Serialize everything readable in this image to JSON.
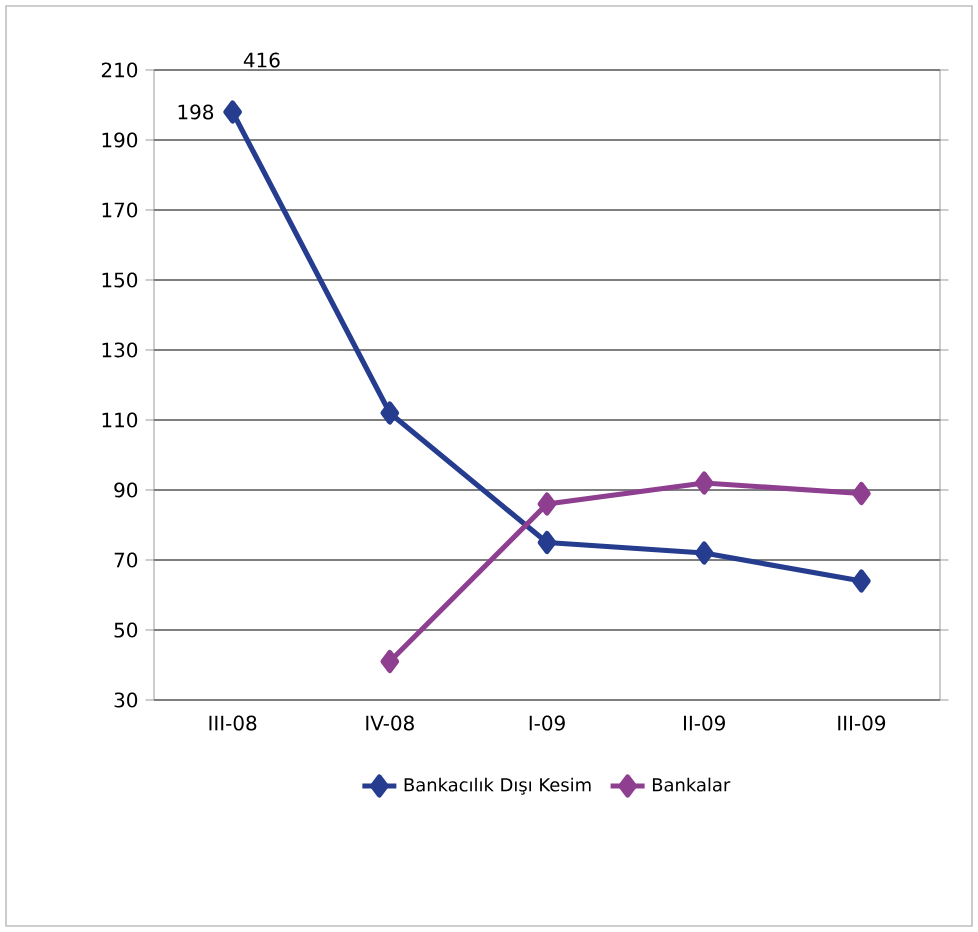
{
  "chart_data": {
    "type": "line",
    "categories": [
      "III-08",
      "IV-08",
      "I-09",
      "II-09",
      "III-09"
    ],
    "series": [
      {
        "name": "Bankacılık Dışı Kesim",
        "color": "#263d8f",
        "values": [
          198,
          112,
          75,
          72,
          64
        ],
        "value_labels": [
          "198",
          null,
          null,
          null,
          null
        ]
      },
      {
        "name": "Bankalar",
        "color": "#8e3f8f",
        "values": [
          null,
          41,
          86,
          92,
          89
        ]
      }
    ],
    "annotations": [
      "416"
    ],
    "ylim": [
      30,
      210
    ],
    "yticks": [
      30,
      50,
      70,
      90,
      110,
      130,
      150,
      170,
      190,
      210
    ],
    "grid": "y",
    "legend": "bottom",
    "marker": "diamond",
    "line_style": "solid"
  }
}
